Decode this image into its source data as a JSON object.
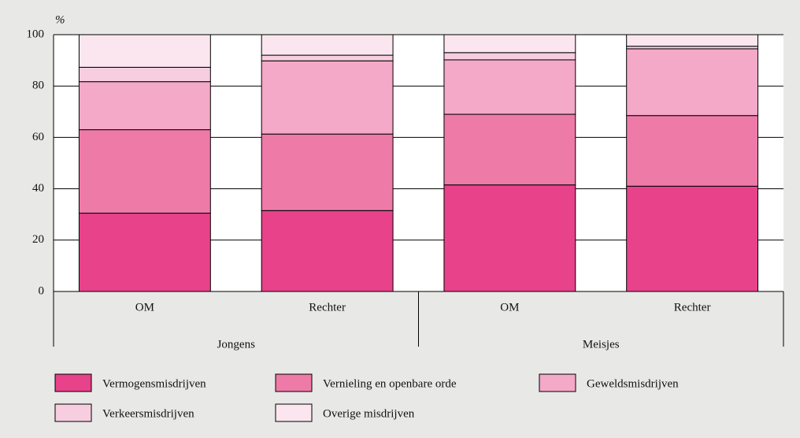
{
  "chart_data": {
    "type": "stacked_bar",
    "y_unit": "%",
    "categories": [
      "OM",
      "Rechter",
      "OM",
      "Rechter"
    ],
    "groups": [
      "Jongens",
      "Meisjes"
    ],
    "series": [
      {
        "name": "Vermogensmisdrijven",
        "color": "#e8428a",
        "values": [
          30.5,
          31.5,
          41.5,
          41
        ]
      },
      {
        "name": "Vernieling en openbare orde",
        "color": "#ee7aa8",
        "values": [
          32.5,
          29.8,
          27.5,
          27.5
        ]
      },
      {
        "name": "Geweldsmisdrijven",
        "color": "#f3a9c7",
        "values": [
          18.7,
          28.5,
          21.2,
          26
        ]
      },
      {
        "name": "Verkeersmisdrijven",
        "color": "#f7cde0",
        "values": [
          5.6,
          2.2,
          2.8,
          1.0
        ]
      },
      {
        "name": "Overige misdrijven",
        "color": "#fbe6ef",
        "values": [
          12.7,
          8.0,
          7.0,
          4.5
        ]
      }
    ],
    "ylim": [
      0,
      100
    ],
    "yticks": [
      0,
      20,
      40,
      60,
      80,
      100
    ],
    "grid": true
  }
}
